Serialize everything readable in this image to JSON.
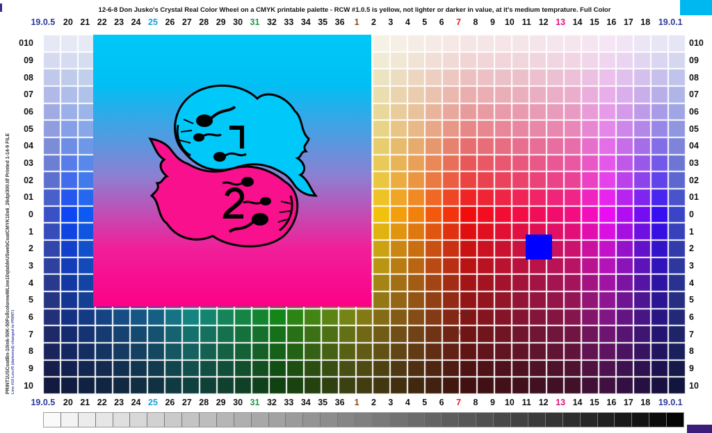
{
  "title": "12-6-8  Don Jusko's Crystal Real Color Wheel on a CMYK printable palette - RCW #1.0.5 is yellow, not lighter or darker in value, at it's medium temprature.   Full Color",
  "side_text": "PRINT1USCoatBn-10ink-50K-50FullcolorewWLine10qtableUSwebCoatCMYK10x6_26dpi300.tif    Printed 1-14-9 FILE",
  "side_subtext": "Line #10 Lev.#5 (darkened) changed to PRINT1",
  "columns": [
    "19.0.5",
    "20",
    "21",
    "22",
    "23",
    "24",
    "25",
    "26",
    "27",
    "28",
    "29",
    "30",
    "31",
    "32",
    "33",
    "34",
    "35",
    "36",
    "1",
    "2",
    "3",
    "4",
    "5",
    "6",
    "7",
    "8",
    "9",
    "10",
    "11",
    "12",
    "13",
    "14",
    "15",
    "16",
    "17",
    "18",
    "19.0.1"
  ],
  "column_colors": {
    "19.0.5": "#2a3a9a",
    "25": "#1aa0d8",
    "31": "#1a9a3a",
    "1": "#8a4a10",
    "7": "#e02020",
    "13": "#e0107a",
    "19.0.1": "#2a3a9a"
  },
  "rows": [
    "010",
    "09",
    "08",
    "07",
    "06",
    "05",
    "04",
    "03",
    "02",
    "01",
    "0",
    "1",
    "2",
    "3",
    "4",
    "5",
    "6",
    "7",
    "8",
    "9",
    "10"
  ],
  "overlay": {
    "top_color": "#00c8f8",
    "bottom_color": "#fc0088",
    "upper_figure_color": "#00c8f8",
    "lower_figure_color": "#f8108c",
    "upper_numeral": "1",
    "lower_numeral": "2"
  },
  "marker_color": "#0000ff",
  "gray_steps": 37
}
